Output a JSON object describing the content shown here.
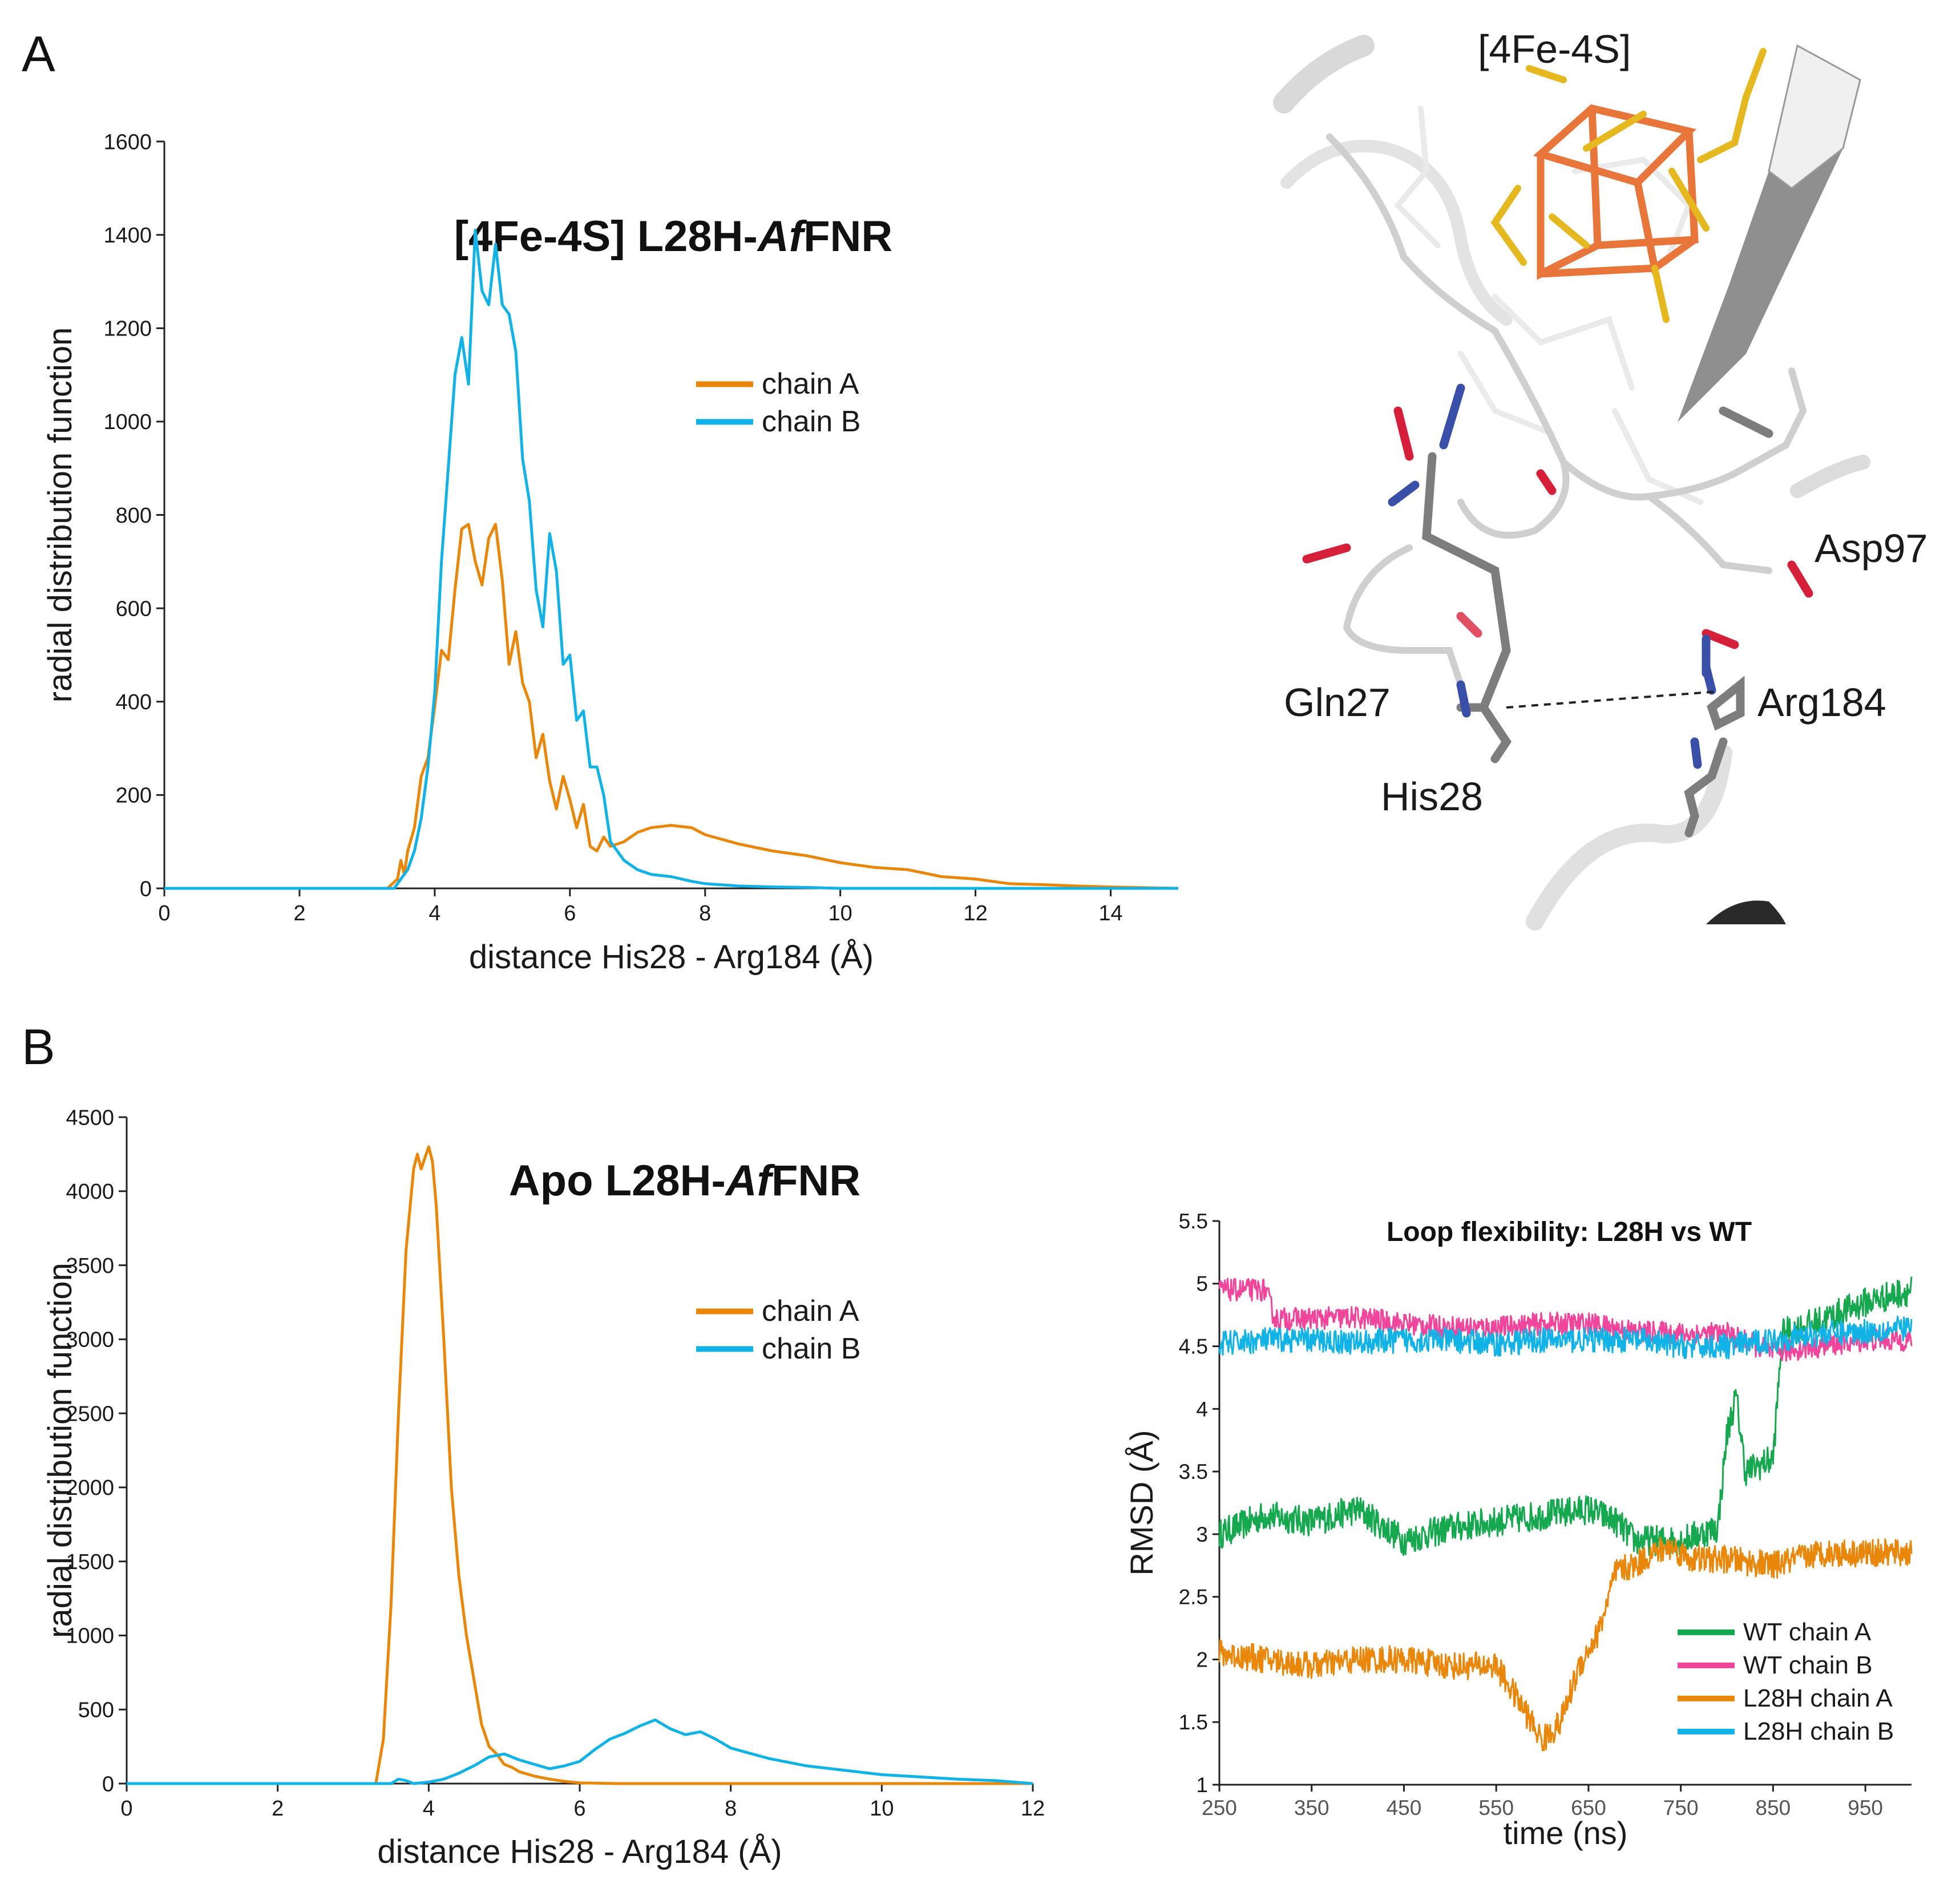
{
  "figure": {
    "panel_a_label": "A",
    "panel_b_label": "B"
  },
  "colors": {
    "orange": "#e8870a",
    "cyan": "#11b3e6",
    "green": "#16a84f",
    "pink": "#f0459b",
    "axis": "#222222"
  },
  "structure": {
    "labels": [
      "[4Fe-4S]",
      "Asp97",
      "Gln27",
      "His28",
      "Arg184"
    ],
    "icon": "protein-structure-icon"
  },
  "chart_data": [
    {
      "id": "chartA",
      "type": "line",
      "title": "[4Fe-4S] L28H-",
      "title_italic": "Af",
      "title_suffix": "FNR",
      "xlabel": "distance His28 - Arg184 (Å)",
      "ylabel": "radial distribution function",
      "xlim": [
        0,
        15
      ],
      "ylim": [
        0,
        1600
      ],
      "xticks": [
        0,
        2,
        4,
        6,
        8,
        10,
        12,
        14
      ],
      "yticks": [
        0,
        200,
        400,
        600,
        800,
        1000,
        1200,
        1400,
        1600
      ],
      "legend": "top-right",
      "series": [
        {
          "name": "chain A",
          "color": "#e8870a",
          "x": [
            0,
            3.3,
            3.45,
            3.5,
            3.55,
            3.6,
            3.7,
            3.8,
            3.9,
            4.0,
            4.1,
            4.2,
            4.3,
            4.4,
            4.5,
            4.6,
            4.7,
            4.8,
            4.9,
            5.0,
            5.1,
            5.2,
            5.3,
            5.4,
            5.5,
            5.6,
            5.7,
            5.8,
            5.9,
            6.0,
            6.1,
            6.2,
            6.3,
            6.4,
            6.5,
            6.6,
            6.8,
            7.0,
            7.2,
            7.5,
            7.8,
            8.0,
            8.5,
            9.0,
            9.5,
            10.0,
            10.5,
            11.0,
            11.5,
            12.0,
            12.5,
            13.0,
            13.5,
            14.0,
            15.0
          ],
          "y": [
            0,
            0,
            20,
            60,
            30,
            80,
            130,
            240,
            280,
            390,
            510,
            490,
            640,
            770,
            780,
            700,
            650,
            750,
            780,
            660,
            480,
            550,
            440,
            400,
            280,
            330,
            230,
            170,
            240,
            190,
            130,
            180,
            90,
            80,
            110,
            90,
            100,
            120,
            130,
            135,
            130,
            115,
            95,
            80,
            70,
            55,
            45,
            40,
            25,
            20,
            10,
            8,
            5,
            3,
            0
          ]
        },
        {
          "name": "chain B",
          "color": "#11b3e6",
          "x": [
            0,
            3.4,
            3.5,
            3.6,
            3.7,
            3.8,
            3.9,
            4.0,
            4.1,
            4.2,
            4.3,
            4.4,
            4.5,
            4.6,
            4.7,
            4.8,
            4.9,
            5.0,
            5.1,
            5.2,
            5.3,
            5.4,
            5.5,
            5.6,
            5.7,
            5.8,
            5.9,
            6.0,
            6.1,
            6.2,
            6.3,
            6.4,
            6.5,
            6.6,
            6.8,
            7.0,
            7.2,
            7.5,
            7.8,
            8.0,
            8.5,
            9.0,
            9.5,
            10.0,
            15.0
          ],
          "y": [
            0,
            0,
            20,
            40,
            80,
            150,
            260,
            420,
            700,
            900,
            1100,
            1180,
            1080,
            1410,
            1280,
            1250,
            1380,
            1250,
            1230,
            1150,
            920,
            830,
            640,
            560,
            760,
            680,
            480,
            500,
            360,
            380,
            260,
            260,
            200,
            100,
            60,
            40,
            30,
            25,
            15,
            10,
            5,
            3,
            2,
            0,
            0
          ]
        }
      ]
    },
    {
      "id": "chartB",
      "type": "line",
      "title": "Apo L28H-",
      "title_italic": "Af",
      "title_suffix": "FNR",
      "xlabel": "distance His28 - Arg184 (Å)",
      "ylabel": "radial distribution function",
      "xlim": [
        0,
        12
      ],
      "ylim": [
        0,
        4500
      ],
      "xticks": [
        0,
        2,
        4,
        6,
        8,
        10,
        12
      ],
      "yticks": [
        0,
        500,
        1000,
        1500,
        2000,
        2500,
        3000,
        3500,
        4000,
        4500
      ],
      "legend": "top-right",
      "series": [
        {
          "name": "chain A",
          "color": "#e8870a",
          "x": [
            0,
            3.3,
            3.4,
            3.5,
            3.6,
            3.7,
            3.8,
            3.85,
            3.9,
            4.0,
            4.05,
            4.1,
            4.2,
            4.3,
            4.4,
            4.5,
            4.6,
            4.7,
            4.8,
            4.9,
            5.0,
            5.1,
            5.2,
            5.4,
            5.6,
            5.8,
            6.0,
            6.5,
            12.0
          ],
          "y": [
            0,
            0,
            300,
            1200,
            2500,
            3600,
            4150,
            4250,
            4150,
            4300,
            4200,
            3900,
            3000,
            2000,
            1400,
            1000,
            700,
            400,
            250,
            200,
            130,
            110,
            80,
            50,
            30,
            15,
            5,
            0,
            0
          ]
        },
        {
          "name": "chain B",
          "color": "#11b3e6",
          "x": [
            0,
            3.5,
            3.6,
            3.7,
            3.8,
            4.0,
            4.2,
            4.4,
            4.6,
            4.8,
            5.0,
            5.2,
            5.4,
            5.6,
            5.8,
            6.0,
            6.2,
            6.4,
            6.6,
            6.8,
            7.0,
            7.2,
            7.4,
            7.6,
            7.8,
            8.0,
            8.5,
            9.0,
            9.5,
            10.0,
            10.5,
            11.0,
            11.5,
            12.0
          ],
          "y": [
            0,
            0,
            30,
            20,
            0,
            10,
            30,
            70,
            120,
            180,
            200,
            160,
            130,
            100,
            120,
            150,
            230,
            300,
            340,
            390,
            430,
            370,
            330,
            350,
            300,
            240,
            170,
            120,
            90,
            60,
            45,
            30,
            20,
            0
          ]
        }
      ]
    },
    {
      "id": "chartC",
      "type": "line",
      "title": "Loop flexibility: L28H vs WT",
      "xlabel": "time (ns)",
      "ylabel": "RMSD (Å)",
      "xlim": [
        250,
        1000
      ],
      "ylim": [
        1,
        5.5
      ],
      "xticks": [
        250,
        350,
        450,
        550,
        650,
        750,
        850,
        950
      ],
      "yticks": [
        1,
        1.5,
        2,
        2.5,
        3,
        3.5,
        4,
        4.5,
        5,
        5.5
      ],
      "ytick_labels": [
        "1",
        "1.5",
        "2",
        "2.5",
        "3",
        "3.5",
        "4",
        "4.5",
        "5",
        "5.5"
      ],
      "legend": "bottom-right",
      "series": [
        {
          "name": "WT chain A",
          "color": "#16a84f",
          "x": [
            250,
            300,
            350,
            400,
            450,
            500,
            550,
            600,
            650,
            680,
            700,
            750,
            790,
            800,
            810,
            820,
            850,
            860,
            900,
            950,
            1000
          ],
          "y": [
            3.0,
            3.15,
            3.1,
            3.2,
            2.95,
            3.05,
            3.1,
            3.15,
            3.2,
            3.1,
            2.95,
            2.95,
            3.05,
            3.8,
            4.1,
            3.5,
            3.6,
            4.6,
            4.7,
            4.85,
            4.95
          ],
          "noise": 0.12
        },
        {
          "name": "WT chain B",
          "color": "#f0459b",
          "x": [
            250,
            300,
            310,
            350,
            400,
            450,
            500,
            550,
            600,
            650,
            700,
            750,
            800,
            850,
            900,
            950,
            1000
          ],
          "y": [
            4.95,
            4.95,
            4.72,
            4.72,
            4.73,
            4.68,
            4.65,
            4.65,
            4.68,
            4.68,
            4.62,
            4.6,
            4.6,
            4.45,
            4.5,
            4.55,
            4.55
          ],
          "noise": 0.09
        },
        {
          "name": "L28H chain A",
          "color": "#e8870a",
          "x": [
            250,
            300,
            350,
            400,
            450,
            500,
            550,
            580,
            600,
            620,
            640,
            660,
            680,
            700,
            720,
            740,
            760,
            800,
            850,
            900,
            950,
            1000
          ],
          "y": [
            2.05,
            2.0,
            1.95,
            2.0,
            2.0,
            1.95,
            1.95,
            1.6,
            1.35,
            1.5,
            1.95,
            2.2,
            2.7,
            2.75,
            2.85,
            2.9,
            2.8,
            2.8,
            2.75,
            2.85,
            2.85,
            2.85
          ],
          "noise": 0.11
        },
        {
          "name": "L28H chain B",
          "color": "#11b3e6",
          "x": [
            250,
            300,
            350,
            400,
            450,
            500,
            550,
            600,
            650,
            700,
            750,
            800,
            850,
            900,
            950,
            1000
          ],
          "y": [
            4.52,
            4.55,
            4.55,
            4.53,
            4.55,
            4.55,
            4.52,
            4.55,
            4.55,
            4.55,
            4.5,
            4.5,
            4.55,
            4.6,
            4.62,
            4.65
          ],
          "noise": 0.1
        }
      ]
    }
  ]
}
